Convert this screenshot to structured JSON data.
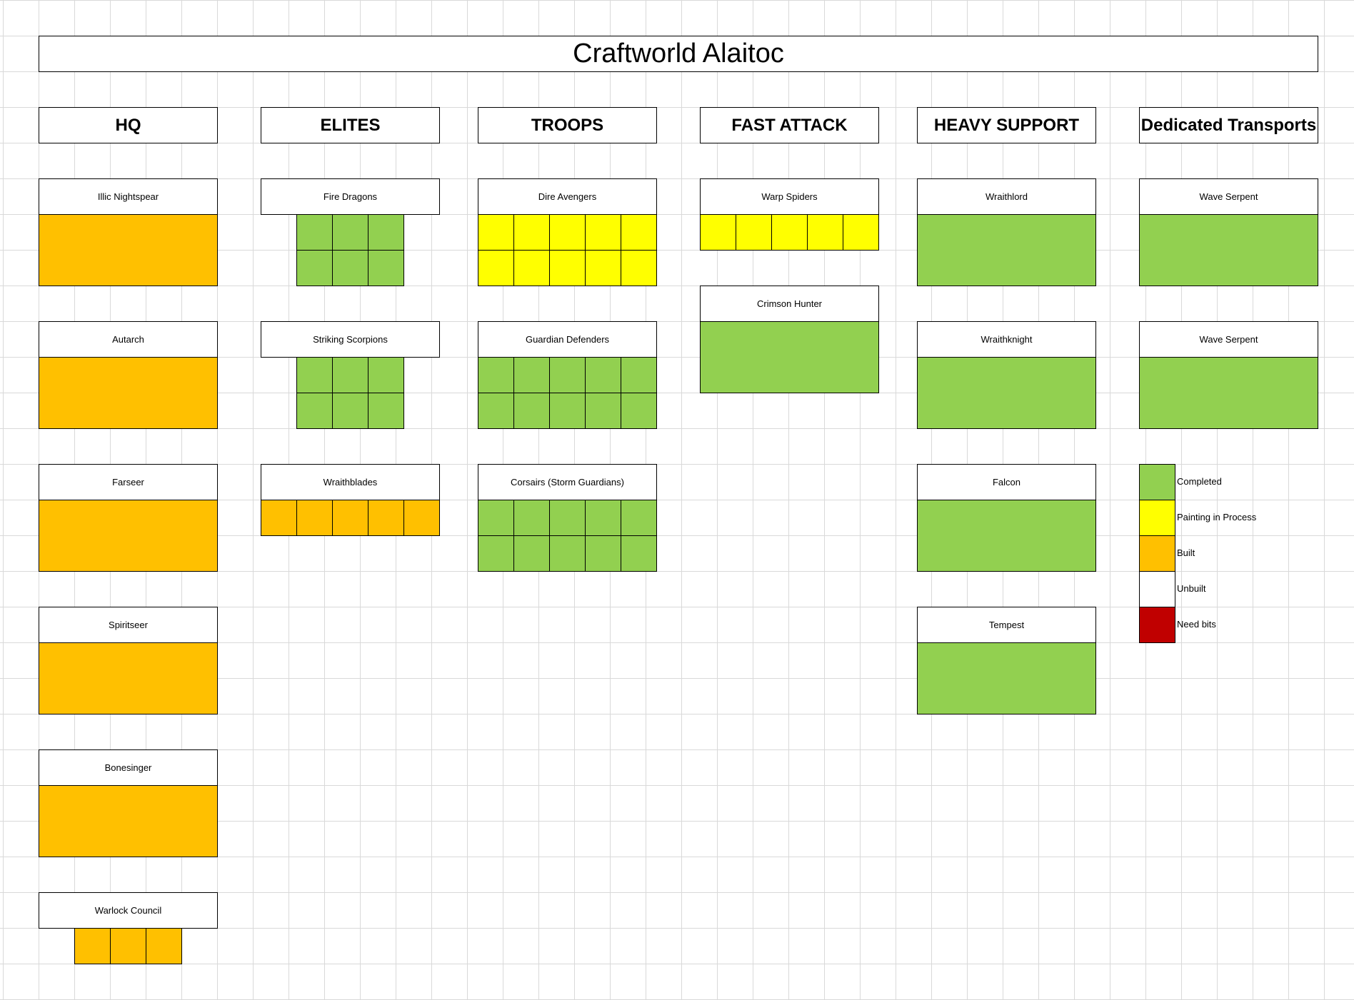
{
  "title": "Craftworld Alaitoc",
  "colors": {
    "completed": "#92d050",
    "painting": "#ffff00",
    "built": "#ffc000",
    "unbuilt": "#ffffff",
    "need_bits": "#c00000"
  },
  "categories": [
    {
      "name": "HQ",
      "units": [
        {
          "name": "Illic Nightspear",
          "status": "built",
          "cols": 1,
          "rows": 2
        },
        {
          "name": "Autarch",
          "status": "built",
          "cols": 1,
          "rows": 2
        },
        {
          "name": "Farseer",
          "status": "built",
          "cols": 1,
          "rows": 2
        },
        {
          "name": "Spiritseer",
          "status": "built",
          "cols": 1,
          "rows": 2
        },
        {
          "name": "Bonesinger",
          "status": "built",
          "cols": 1,
          "rows": 2
        },
        {
          "name": "Warlock Council",
          "status": "built",
          "cols": 3,
          "rows": 1
        }
      ]
    },
    {
      "name": "ELITES",
      "units": [
        {
          "name": "Fire Dragons",
          "status": "completed",
          "cols": 3,
          "rows": 2
        },
        {
          "name": "Striking Scorpions",
          "status": "completed",
          "cols": 3,
          "rows": 2
        },
        {
          "name": "Wraithblades",
          "status": "built",
          "cols": 5,
          "rows": 1
        }
      ]
    },
    {
      "name": "TROOPS",
      "units": [
        {
          "name": "Dire Avengers",
          "status": "painting",
          "cols": 5,
          "rows": 2
        },
        {
          "name": "Guardian Defenders",
          "status": "completed",
          "cols": 5,
          "rows": 2
        },
        {
          "name": "Corsairs (Storm Guardians)",
          "status": "completed",
          "cols": 5,
          "rows": 2
        }
      ]
    },
    {
      "name": "FAST ATTACK",
      "units": [
        {
          "name": "Warp Spiders",
          "status": "painting",
          "cols": 5,
          "rows": 1
        },
        {
          "name": "Crimson Hunter",
          "status": "completed",
          "cols": 1,
          "rows": 2
        }
      ]
    },
    {
      "name": "HEAVY SUPPORT",
      "units": [
        {
          "name": "Wraithlord",
          "status": "completed",
          "cols": 1,
          "rows": 2
        },
        {
          "name": "Wraithknight",
          "status": "completed",
          "cols": 1,
          "rows": 2
        },
        {
          "name": "Falcon",
          "status": "completed",
          "cols": 1,
          "rows": 2
        },
        {
          "name": "Tempest",
          "status": "completed",
          "cols": 1,
          "rows": 2
        }
      ]
    },
    {
      "name": "Dedicated Transports",
      "units": [
        {
          "name": "Wave Serpent",
          "status": "completed",
          "cols": 1,
          "rows": 2
        },
        {
          "name": "Wave Serpent",
          "status": "completed",
          "cols": 1,
          "rows": 2
        }
      ]
    }
  ],
  "legend": [
    {
      "label": "Completed",
      "status": "completed"
    },
    {
      "label": "Painting in Process",
      "status": "painting"
    },
    {
      "label": "Built",
      "status": "built"
    },
    {
      "label": "Unbuilt",
      "status": "unbuilt"
    },
    {
      "label": "Need bits",
      "status": "need_bits"
    }
  ]
}
